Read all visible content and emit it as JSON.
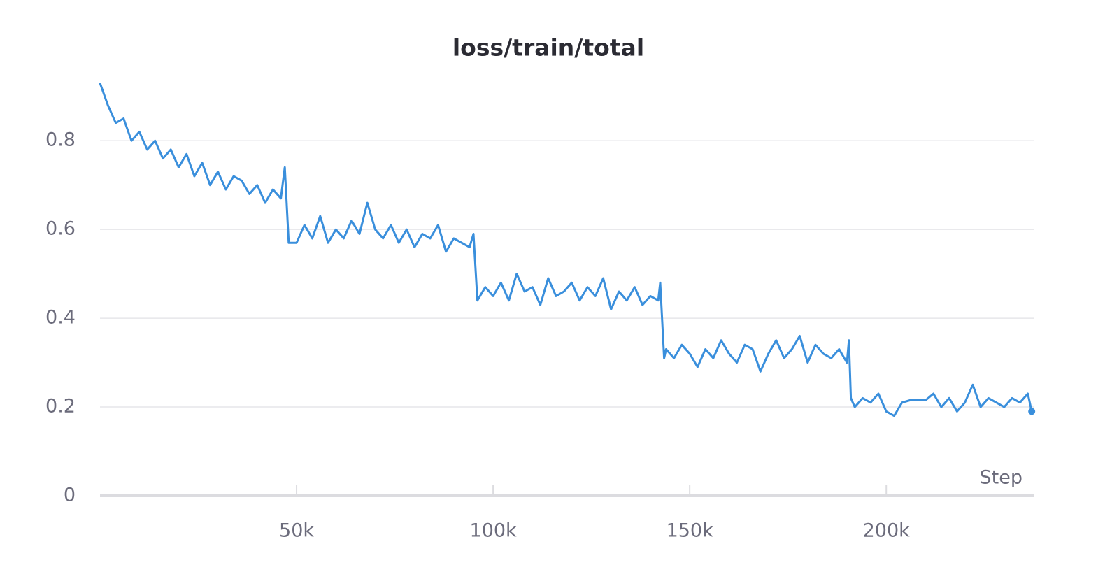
{
  "chart_data": {
    "type": "line",
    "title": "loss/train/total",
    "x_label": "Step",
    "x": [
      0,
      2000,
      4000,
      6000,
      8000,
      10000,
      12000,
      14000,
      16000,
      18000,
      20000,
      22000,
      24000,
      26000,
      28000,
      30000,
      32000,
      34000,
      36000,
      38000,
      40000,
      42000,
      44000,
      46000,
      47000,
      48000,
      50000,
      52000,
      54000,
      56000,
      58000,
      60000,
      62000,
      64000,
      66000,
      68000,
      70000,
      72000,
      74000,
      76000,
      78000,
      80000,
      82000,
      84000,
      86000,
      88000,
      90000,
      92000,
      94000,
      95000,
      96000,
      98000,
      100000,
      102000,
      104000,
      106000,
      108000,
      110000,
      112000,
      114000,
      116000,
      118000,
      120000,
      122000,
      124000,
      126000,
      128000,
      130000,
      132000,
      134000,
      136000,
      138000,
      140000,
      142000,
      142500,
      143500,
      144000,
      146000,
      148000,
      150000,
      152000,
      154000,
      156000,
      158000,
      160000,
      162000,
      164000,
      166000,
      168000,
      170000,
      172000,
      174000,
      176000,
      178000,
      180000,
      182000,
      184000,
      186000,
      188000,
      190000,
      190500,
      191000,
      192000,
      194000,
      196000,
      198000,
      200000,
      202000,
      204000,
      206000,
      210000,
      212000,
      214000,
      216000,
      218000,
      220000,
      222000,
      224000,
      226000,
      228000,
      230000,
      232000,
      234000,
      236000,
      237000
    ],
    "series": [
      {
        "name": "loss/train/total",
        "color": "#3a8fdc",
        "values": [
          0.93,
          0.88,
          0.84,
          0.85,
          0.8,
          0.82,
          0.78,
          0.8,
          0.76,
          0.78,
          0.74,
          0.77,
          0.72,
          0.75,
          0.7,
          0.73,
          0.69,
          0.72,
          0.71,
          0.68,
          0.7,
          0.66,
          0.69,
          0.67,
          0.74,
          0.57,
          0.57,
          0.61,
          0.58,
          0.63,
          0.57,
          0.6,
          0.58,
          0.62,
          0.59,
          0.66,
          0.6,
          0.58,
          0.61,
          0.57,
          0.6,
          0.56,
          0.59,
          0.58,
          0.61,
          0.55,
          0.58,
          0.57,
          0.56,
          0.59,
          0.44,
          0.47,
          0.45,
          0.48,
          0.44,
          0.5,
          0.46,
          0.47,
          0.43,
          0.49,
          0.45,
          0.46,
          0.48,
          0.44,
          0.47,
          0.45,
          0.49,
          0.42,
          0.46,
          0.44,
          0.47,
          0.43,
          0.45,
          0.44,
          0.48,
          0.31,
          0.33,
          0.31,
          0.34,
          0.32,
          0.29,
          0.33,
          0.31,
          0.35,
          0.32,
          0.3,
          0.34,
          0.33,
          0.28,
          0.32,
          0.35,
          0.31,
          0.33,
          0.36,
          0.3,
          0.34,
          0.32,
          0.31,
          0.33,
          0.3,
          0.35,
          0.22,
          0.2,
          0.22,
          0.21,
          0.23,
          0.19,
          0.18,
          0.21,
          0.215,
          0.215,
          0.23,
          0.2,
          0.22,
          0.19,
          0.21,
          0.25,
          0.2,
          0.22,
          0.21,
          0.2,
          0.22,
          0.21,
          0.23,
          0.19
        ]
      }
    ],
    "xlim": [
      0,
      237500
    ],
    "ylim": [
      0,
      0.95
    ],
    "xticks": [
      {
        "value": 50000,
        "label": "50k"
      },
      {
        "value": 100000,
        "label": "100k"
      },
      {
        "value": 150000,
        "label": "150k"
      },
      {
        "value": 200000,
        "label": "200k"
      }
    ],
    "yticks": [
      0,
      0.2,
      0.4,
      0.6,
      0.8
    ],
    "grid": true
  }
}
